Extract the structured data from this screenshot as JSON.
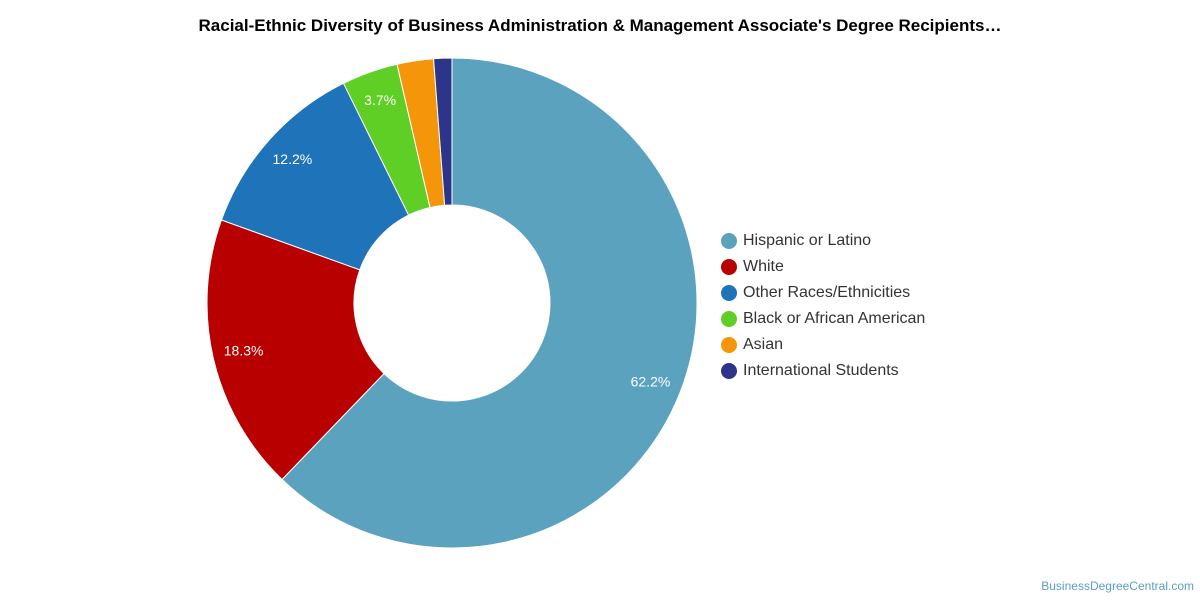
{
  "chart_data": {
    "type": "pie",
    "title": "Racial-Ethnic Diversity of Business Administration & Management Associate's Degree Recipients…",
    "donut": true,
    "legend_position": "right",
    "slices": [
      {
        "label": "Hispanic or Latino",
        "value": 62.2,
        "color": "#5ba2bf",
        "value_label": "62.2%"
      },
      {
        "label": "White",
        "value": 18.3,
        "color": "#b80000",
        "value_label": "18.3%"
      },
      {
        "label": "Other Races/Ethnicities",
        "value": 12.2,
        "color": "#1f73b8",
        "value_label": "12.2%"
      },
      {
        "label": "Black or African American",
        "value": 3.7,
        "color": "#5fcf25",
        "value_label": "3.7%"
      },
      {
        "label": "Asian",
        "value": 2.4,
        "color": "#f5960a",
        "value_label": ""
      },
      {
        "label": "International Students",
        "value": 1.2,
        "color": "#2c3589",
        "value_label": ""
      }
    ]
  },
  "footer": {
    "source": "BusinessDegreeCentral.com"
  }
}
